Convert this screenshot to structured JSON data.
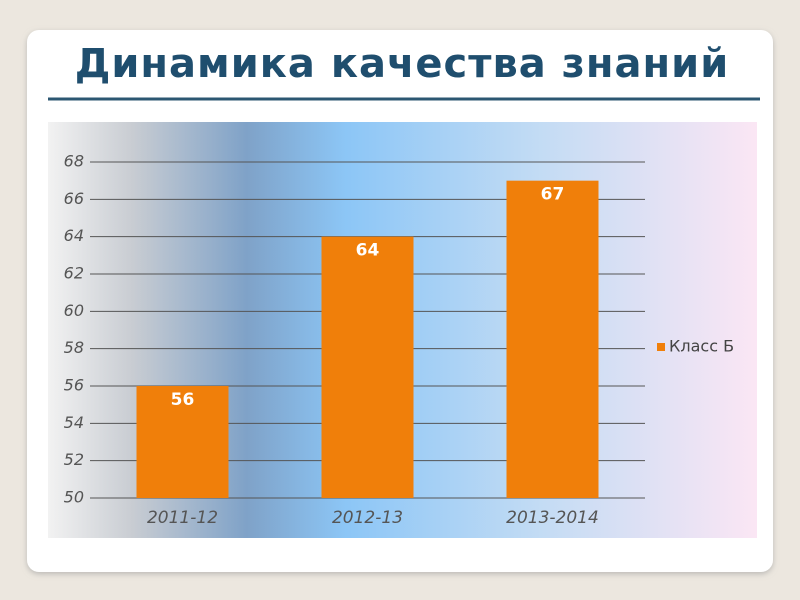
{
  "chart_data": {
    "type": "bar",
    "title": "Динамика качества знаний",
    "categories": [
      "2011-12",
      "2012-13",
      "2013-2014"
    ],
    "series": [
      {
        "name": "Класс Б",
        "color": "#f07f0a",
        "values": [
          56,
          64,
          67
        ]
      }
    ],
    "ylim": [
      50,
      68
    ],
    "yticks": [
      50,
      52,
      54,
      56,
      58,
      60,
      62,
      64,
      66,
      68
    ],
    "grid": true,
    "legend": "right"
  }
}
